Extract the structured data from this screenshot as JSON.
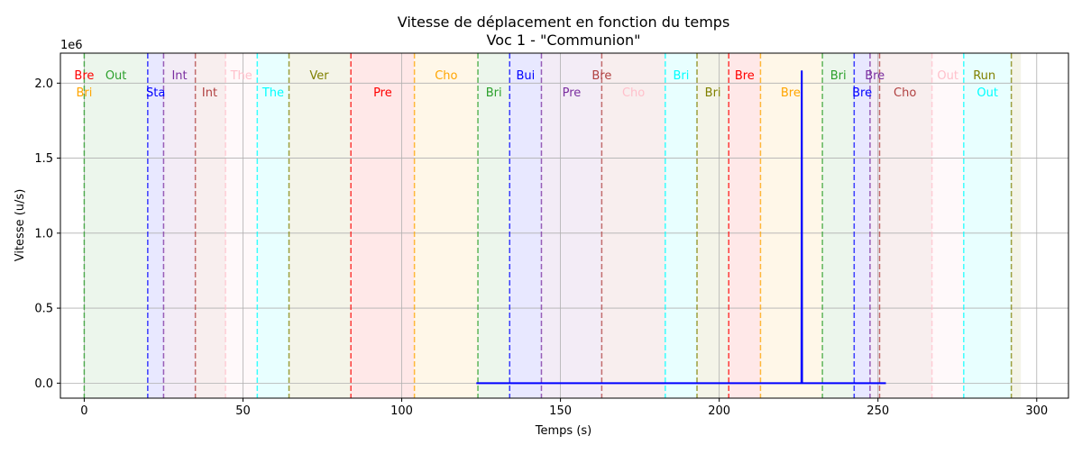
{
  "chart_data": {
    "type": "line",
    "title": "Vitesse de déplacement en fonction du temps",
    "subtitle": "Voc 1 - \"Communion\"",
    "xlabel": "Temps (s)",
    "ylabel": "Vitesse (u/s)",
    "y_offset_label": "1e6",
    "xlim": [
      -7.5,
      310
    ],
    "ylim": [
      -0.1,
      2.2
    ],
    "y_unit_scale": "1e6",
    "grid": true,
    "x_ticks": [
      {
        "value": 0,
        "label": "0"
      },
      {
        "value": 50,
        "label": "50"
      },
      {
        "value": 100,
        "label": "100"
      },
      {
        "value": 150,
        "label": "150"
      },
      {
        "value": 200,
        "label": "200"
      },
      {
        "value": 250,
        "label": "250"
      },
      {
        "value": 300,
        "label": "300"
      }
    ],
    "y_ticks": [
      {
        "value": 0.0,
        "label": "0.0"
      },
      {
        "value": 0.5,
        "label": "0.5"
      },
      {
        "value": 1.0,
        "label": "1.0"
      },
      {
        "value": 1.5,
        "label": "1.5"
      },
      {
        "value": 2.0,
        "label": "2.0"
      }
    ],
    "sections": [
      {
        "start": 0,
        "end": 20,
        "color": "#2ca02c",
        "line_color": "#2ca02c"
      },
      {
        "start": 20,
        "end": 25,
        "color": "#0000ff",
        "line_color": "#0000ff"
      },
      {
        "start": 25,
        "end": 35,
        "color": "#7b2fa0",
        "line_color": "#7b2fa0"
      },
      {
        "start": 35,
        "end": 44.5,
        "color": "#b04040",
        "line_color": "#b04040"
      },
      {
        "start": 44.5,
        "end": 54.5,
        "color": "#ffc0cb",
        "line_color": "#ffc0cb"
      },
      {
        "start": 54.5,
        "end": 64.5,
        "color": "#00ffff",
        "line_color": "#00ffff"
      },
      {
        "start": 64.5,
        "end": 84,
        "color": "#808000",
        "line_color": "#808000"
      },
      {
        "start": 84,
        "end": 104,
        "color": "#ff0000",
        "line_color": "#ff0000"
      },
      {
        "start": 104,
        "end": 124,
        "color": "#ffa500",
        "line_color": "#ffa500"
      },
      {
        "start": 124,
        "end": 134,
        "color": "#2ca02c",
        "line_color": "#2ca02c"
      },
      {
        "start": 134,
        "end": 144,
        "color": "#0000ff",
        "line_color": "#0000ff"
      },
      {
        "start": 144,
        "end": 163,
        "color": "#7b2fa0",
        "line_color": "#7b2fa0"
      },
      {
        "start": 163,
        "end": 183,
        "color": "#b04040",
        "line_color": "#b04040"
      },
      {
        "start": 183,
        "end": 193,
        "color": "#00ffff",
        "line_color": "#00ffff"
      },
      {
        "start": 193,
        "end": 203,
        "color": "#808000",
        "line_color": "#808000"
      },
      {
        "start": 203,
        "end": 213,
        "color": "#ff0000",
        "line_color": "#ff0000"
      },
      {
        "start": 213,
        "end": 232.5,
        "color": "#ffa500",
        "line_color": "#ffa500"
      },
      {
        "start": 232.5,
        "end": 242.5,
        "color": "#2ca02c",
        "line_color": "#2ca02c"
      },
      {
        "start": 242.5,
        "end": 247.5,
        "color": "#0000ff",
        "line_color": "#0000ff"
      },
      {
        "start": 247.5,
        "end": 250.5,
        "color": "#7b2fa0",
        "line_color": "#7b2fa0"
      },
      {
        "start": 250.5,
        "end": 267,
        "color": "#b04040",
        "line_color": "#b04040"
      },
      {
        "start": 267,
        "end": 277,
        "color": "#ffc0cb",
        "line_color": "#ffc0cb"
      },
      {
        "start": 277,
        "end": 292,
        "color": "#00ffff",
        "line_color": "#00ffff"
      },
      {
        "start": 292,
        "end": 295,
        "color": "#808000",
        "line_color": "#808000"
      }
    ],
    "section_labels": [
      {
        "text": "Bre",
        "x": 0,
        "row": 1,
        "color": "#ff0000"
      },
      {
        "text": "Bri",
        "x": 0,
        "row": 2,
        "color": "#ffa500"
      },
      {
        "text": "Out",
        "x": 10,
        "row": 1,
        "color": "#2ca02c"
      },
      {
        "text": "Sta",
        "x": 22.5,
        "row": 2,
        "color": "#0000ff"
      },
      {
        "text": "Int",
        "x": 30,
        "row": 1,
        "color": "#7b2fa0"
      },
      {
        "text": "Int",
        "x": 39.5,
        "row": 2,
        "color": "#b04040"
      },
      {
        "text": "The",
        "x": 49.5,
        "row": 1,
        "color": "#ffc0cb"
      },
      {
        "text": "The",
        "x": 59.5,
        "row": 2,
        "color": "#00ffff"
      },
      {
        "text": "Ver",
        "x": 74,
        "row": 1,
        "color": "#808000"
      },
      {
        "text": "Pre",
        "x": 94,
        "row": 2,
        "color": "#ff0000"
      },
      {
        "text": "Cho",
        "x": 114,
        "row": 1,
        "color": "#ffa500"
      },
      {
        "text": "Bri",
        "x": 129,
        "row": 2,
        "color": "#2ca02c"
      },
      {
        "text": "Bui",
        "x": 139,
        "row": 1,
        "color": "#0000ff"
      },
      {
        "text": "Pre",
        "x": 153.5,
        "row": 2,
        "color": "#7b2fa0"
      },
      {
        "text": "Bre",
        "x": 163,
        "row": 1,
        "color": "#b04040"
      },
      {
        "text": "Cho",
        "x": 173,
        "row": 2,
        "color": "#ffc0cb"
      },
      {
        "text": "Bri",
        "x": 188,
        "row": 1,
        "color": "#00ffff"
      },
      {
        "text": "Bri",
        "x": 198,
        "row": 2,
        "color": "#808000"
      },
      {
        "text": "Bre",
        "x": 208,
        "row": 1,
        "color": "#ff0000"
      },
      {
        "text": "Bre",
        "x": 222.5,
        "row": 2,
        "color": "#ffa500"
      },
      {
        "text": "Bri",
        "x": 237.5,
        "row": 1,
        "color": "#2ca02c"
      },
      {
        "text": "Bre",
        "x": 245,
        "row": 2,
        "color": "#0000ff"
      },
      {
        "text": "Bre",
        "x": 249,
        "row": 1,
        "color": "#7b2fa0"
      },
      {
        "text": "Cho",
        "x": 258.5,
        "row": 2,
        "color": "#b04040"
      },
      {
        "text": "Out",
        "x": 272,
        "row": 1,
        "color": "#ffc0cb"
      },
      {
        "text": "Out",
        "x": 284.5,
        "row": 2,
        "color": "#00ffff"
      },
      {
        "text": "Run",
        "x": 283.5,
        "row": 1,
        "color": "#808000"
      }
    ],
    "series": [
      {
        "color": "#0000ff",
        "x": [
          123.5,
          225.9,
          226.0,
          226.1,
          226.2,
          252.5
        ],
        "y": [
          0.0,
          0.0,
          2.08,
          0.0,
          0.0,
          0.0
        ]
      }
    ]
  }
}
